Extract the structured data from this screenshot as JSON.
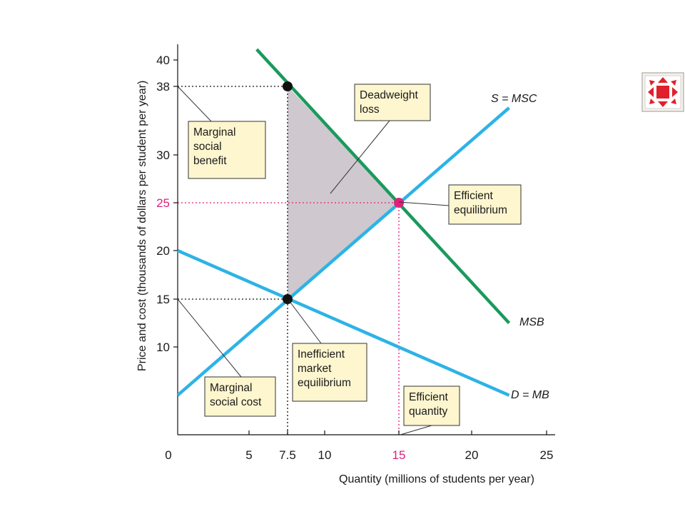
{
  "colors": {
    "supply": "#2db3e6",
    "demand": "#2db3e6",
    "msb": "#1a9a5c",
    "highlight": "#e0217a",
    "dwl_fill": "#cfc8cf",
    "callout_fill": "#fdf6cf",
    "nav_red": "#e0202a"
  },
  "nav_button": {
    "icon": "expand-arrows-icon"
  },
  "chart_data": {
    "type": "line",
    "xlabel": "Quantity (millions of students per year)",
    "ylabel": "Price and cost (thousands of dollars per student per year)",
    "xlim": [
      0,
      25
    ],
    "ylim": [
      0,
      40
    ],
    "grid": false,
    "x_ticks": [
      {
        "value": 0,
        "label": "0"
      },
      {
        "value": 5,
        "label": "5"
      },
      {
        "value": 7.5,
        "label": "7.5"
      },
      {
        "value": 10,
        "label": "10"
      },
      {
        "value": 15,
        "label": "15",
        "highlight": true
      },
      {
        "value": 20,
        "label": "20"
      },
      {
        "value": 25,
        "label": "25"
      }
    ],
    "y_ticks": [
      {
        "value": 10,
        "label": "10"
      },
      {
        "value": 15,
        "label": "15"
      },
      {
        "value": 20,
        "label": "20"
      },
      {
        "value": 25,
        "label": "25",
        "highlight": true
      },
      {
        "value": 30,
        "label": "30"
      },
      {
        "value": 38,
        "label": "38"
      },
      {
        "value": 40,
        "label": "40"
      }
    ],
    "series": [
      {
        "name": "S = MSC",
        "color_key": "supply",
        "points": [
          [
            0,
            4.5
          ],
          [
            22.5,
            35.5
          ]
        ]
      },
      {
        "name": "D = MB",
        "color_key": "demand",
        "points": [
          [
            0,
            20
          ],
          [
            22.5,
            4.5
          ]
        ]
      },
      {
        "name": "MSB",
        "color_key": "msb",
        "points": [
          [
            5.5,
            40.8
          ],
          [
            22.5,
            12.5
          ]
        ]
      }
    ],
    "deadweight_loss": [
      [
        7.5,
        38
      ],
      [
        15,
        25
      ],
      [
        7.5,
        15
      ]
    ],
    "points": [
      {
        "x": 7.5,
        "y": 38,
        "color_key": "black"
      },
      {
        "x": 15,
        "y": 25,
        "color_key": "highlight"
      },
      {
        "x": 7.5,
        "y": 15,
        "color_key": "black"
      }
    ],
    "guides": [
      {
        "from": [
          0,
          38
        ],
        "to": [
          7.5,
          38
        ],
        "color_key": "black"
      },
      {
        "from": [
          7.5,
          38
        ],
        "to": [
          7.5,
          0
        ],
        "color_key": "black"
      },
      {
        "from": [
          0,
          15
        ],
        "to": [
          7.5,
          15
        ],
        "color_key": "black"
      },
      {
        "from": [
          0,
          25
        ],
        "to": [
          15,
          25
        ],
        "color_key": "highlight"
      },
      {
        "from": [
          15,
          25
        ],
        "to": [
          15,
          0
        ],
        "color_key": "highlight"
      }
    ],
    "annotations": [
      {
        "lines": [
          "Deadweight",
          "loss"
        ]
      },
      {
        "lines": [
          "Marginal",
          "social",
          "benefit"
        ]
      },
      {
        "lines": [
          "Efficient",
          "equilibrium"
        ]
      },
      {
        "lines": [
          "Marginal",
          "social cost"
        ]
      },
      {
        "lines": [
          "Inefficient",
          "market",
          "equilibrium"
        ]
      },
      {
        "lines": [
          "Efficient",
          "quantity"
        ]
      }
    ]
  }
}
